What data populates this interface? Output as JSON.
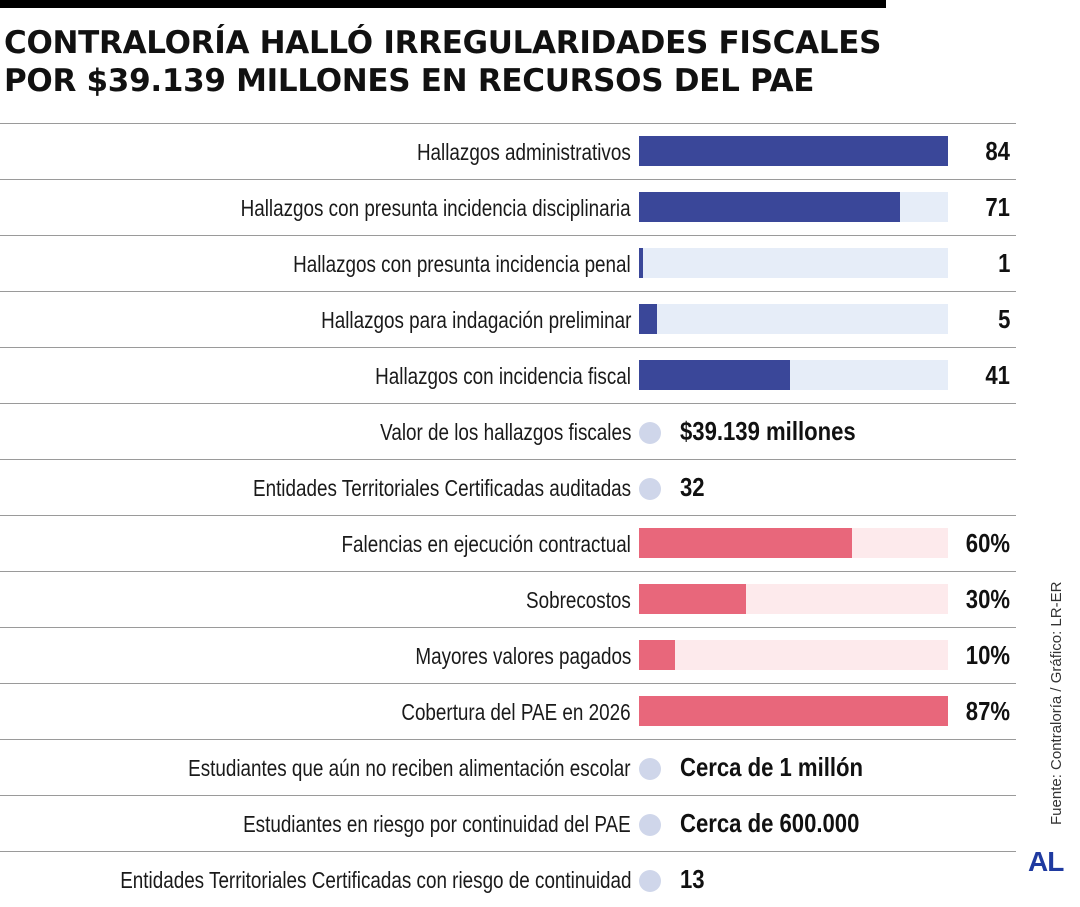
{
  "header": {
    "title_line1": "CONTRALORÍA HALLÓ IRREGULARIDADES FISCALES",
    "title_line2": "POR $39.139 MILLONES EN RECURSOS DEL PAE"
  },
  "footer": {
    "source": "Fuente: Contraloría / Gráfico: LR-ER",
    "logo": "AL"
  },
  "colors": {
    "blue_bar": "#3a4799",
    "blue_track": "#e6edf8",
    "red_bar": "#e8677b",
    "red_track": "#fdeaec",
    "dot": "#cfd6ea"
  },
  "chart_data": {
    "type": "bar",
    "title": "CONTRALORÍA HALLÓ IRREGULARIDADES FISCALES POR $39.139 MILLONES EN RECURSOS DEL PAE",
    "rows": [
      {
        "kind": "bar",
        "label": "Hallazgos administrativos",
        "value": 84,
        "max": 84,
        "display": "84",
        "color": "blue"
      },
      {
        "kind": "bar",
        "label": "Hallazgos con presunta incidencia disciplinaria",
        "value": 71,
        "max": 84,
        "display": "71",
        "color": "blue"
      },
      {
        "kind": "bar",
        "label": "Hallazgos con presunta incidencia penal",
        "value": 1,
        "max": 84,
        "display": "1",
        "color": "blue"
      },
      {
        "kind": "bar",
        "label": "Hallazgos para indagación preliminar",
        "value": 5,
        "max": 84,
        "display": "5",
        "color": "blue"
      },
      {
        "kind": "bar",
        "label": "Hallazgos con incidencia fiscal",
        "value": 41,
        "max": 84,
        "display": "41",
        "color": "blue"
      },
      {
        "kind": "stat",
        "label": "Valor de los hallazgos fiscales",
        "display": "$39.139 millones"
      },
      {
        "kind": "stat",
        "label": "Entidades Territoriales Certificadas auditadas",
        "display": "32"
      },
      {
        "kind": "bar",
        "label": "Falencias en ejecución contractual",
        "value": 60,
        "max": 87,
        "display": "60%",
        "color": "red"
      },
      {
        "kind": "bar",
        "label": "Sobrecostos",
        "value": 30,
        "max": 87,
        "display": "30%",
        "color": "red"
      },
      {
        "kind": "bar",
        "label": "Mayores valores pagados",
        "value": 10,
        "max": 87,
        "display": "10%",
        "color": "red"
      },
      {
        "kind": "bar",
        "label": "Cobertura del PAE en 2026",
        "value": 87,
        "max": 87,
        "display": "87%",
        "color": "red"
      },
      {
        "kind": "stat",
        "label": "Estudiantes que aún no reciben alimentación escolar",
        "display": "Cerca de 1 millón"
      },
      {
        "kind": "stat",
        "label": "Estudiantes en riesgo por continuidad del PAE",
        "display": "Cerca de 600.000"
      },
      {
        "kind": "stat",
        "label": "Entidades Territoriales Certificadas con riesgo de continuidad",
        "display": "13"
      }
    ]
  }
}
